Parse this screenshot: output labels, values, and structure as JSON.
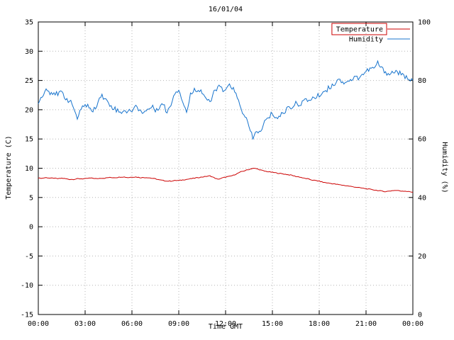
{
  "legend": {
    "items": [
      {
        "label": "Temperature",
        "color": "#cc0000",
        "boxed": true
      },
      {
        "label": "Humidity",
        "color": "#1874cd",
        "boxed": false
      }
    ]
  },
  "chart_data": {
    "type": "line",
    "title": "16/01/04",
    "xlabel": "Time GMT",
    "ylabel_left": "Temperature (C)",
    "ylabel_right": "Humidity (%)",
    "x_range": [
      0,
      24
    ],
    "y_left_range": [
      -15,
      35
    ],
    "y_right_range": [
      0,
      100
    ],
    "grid": true,
    "legend_position": "top-right",
    "frame_color": "#000000",
    "grid_color": "#b4b4b4",
    "x_ticks": [
      0,
      3,
      6,
      9,
      12,
      15,
      18,
      21,
      24
    ],
    "x_tick_labels": [
      "00:00",
      "03:00",
      "06:00",
      "09:00",
      "12:00",
      "15:00",
      "18:00",
      "21:00",
      "00:00"
    ],
    "y_left_ticks": [
      -15,
      -10,
      -5,
      0,
      5,
      10,
      15,
      20,
      25,
      30,
      35
    ],
    "y_right_ticks": [
      0,
      20,
      40,
      60,
      80,
      100
    ],
    "x": [
      0,
      0.25,
      0.5,
      0.75,
      1,
      1.25,
      1.5,
      1.75,
      2,
      2.25,
      2.5,
      2.75,
      3,
      3.25,
      3.5,
      3.75,
      4,
      4.25,
      4.5,
      4.75,
      5,
      5.25,
      5.5,
      5.75,
      6,
      6.25,
      6.5,
      6.75,
      7,
      7.25,
      7.5,
      7.75,
      8,
      8.25,
      8.5,
      8.75,
      9,
      9.25,
      9.5,
      9.75,
      10,
      10.25,
      10.5,
      10.75,
      11,
      11.25,
      11.5,
      11.75,
      12,
      12.25,
      12.5,
      12.75,
      13,
      13.25,
      13.5,
      13.75,
      14,
      14.25,
      14.5,
      14.75,
      15,
      15.25,
      15.5,
      15.75,
      16,
      16.25,
      16.5,
      16.75,
      17,
      17.25,
      17.5,
      17.75,
      18,
      18.25,
      18.5,
      18.75,
      19,
      19.25,
      19.5,
      19.75,
      20,
      20.25,
      20.5,
      20.75,
      21,
      21.25,
      21.5,
      21.75,
      22,
      22.25,
      22.5,
      22.75,
      23,
      23.25,
      23.5,
      23.75,
      24
    ],
    "series": [
      {
        "name": "Temperature",
        "axis": "left",
        "color": "#cc0000",
        "values": [
          8.3,
          8.3,
          8.4,
          8.3,
          8.3,
          8.2,
          8.3,
          8.2,
          8.1,
          8.1,
          8.2,
          8.2,
          8.2,
          8.3,
          8.3,
          8.2,
          8.3,
          8.3,
          8.4,
          8.4,
          8.4,
          8.5,
          8.5,
          8.4,
          8.5,
          8.5,
          8.4,
          8.4,
          8.4,
          8.3,
          8.2,
          8.0,
          7.9,
          7.8,
          7.8,
          7.9,
          7.9,
          8.0,
          8.1,
          8.2,
          8.3,
          8.4,
          8.5,
          8.6,
          8.7,
          8.4,
          8.1,
          8.3,
          8.5,
          8.6,
          8.8,
          9.1,
          9.4,
          9.6,
          9.8,
          10.0,
          9.9,
          9.7,
          9.5,
          9.4,
          9.3,
          9.2,
          9.1,
          9.0,
          8.9,
          8.8,
          8.6,
          8.5,
          8.3,
          8.2,
          8.0,
          7.9,
          7.8,
          7.6,
          7.5,
          7.4,
          7.3,
          7.2,
          7.1,
          7.0,
          6.9,
          6.8,
          6.7,
          6.6,
          6.5,
          6.4,
          6.3,
          6.2,
          6.1,
          6.0,
          6.1,
          6.2,
          6.2,
          6.1,
          6.1,
          6.0,
          5.9
        ]
      },
      {
        "name": "Humidity",
        "axis": "right",
        "color": "#1874cd",
        "values": [
          72,
          75,
          77,
          76,
          76,
          75,
          76,
          74,
          73,
          71,
          67,
          70,
          72,
          71,
          69,
          72,
          75,
          74,
          72,
          71,
          70,
          69,
          70,
          69,
          70,
          71,
          70,
          69,
          70,
          71,
          70,
          71,
          72,
          69,
          72,
          76,
          77,
          73,
          69,
          75,
          77,
          77,
          76,
          74,
          72,
          76,
          78,
          77,
          76,
          79,
          77,
          74,
          70,
          68,
          64,
          60,
          63,
          62,
          66,
          67,
          69,
          67,
          68,
          69,
          71,
          71,
          72,
          72,
          73,
          73,
          74,
          74,
          75,
          76,
          77,
          78,
          79,
          81,
          79,
          80,
          80,
          81,
          81,
          82,
          83,
          84,
          84,
          86,
          84,
          83,
          82,
          83,
          83,
          82,
          81,
          81,
          80
        ]
      }
    ]
  }
}
